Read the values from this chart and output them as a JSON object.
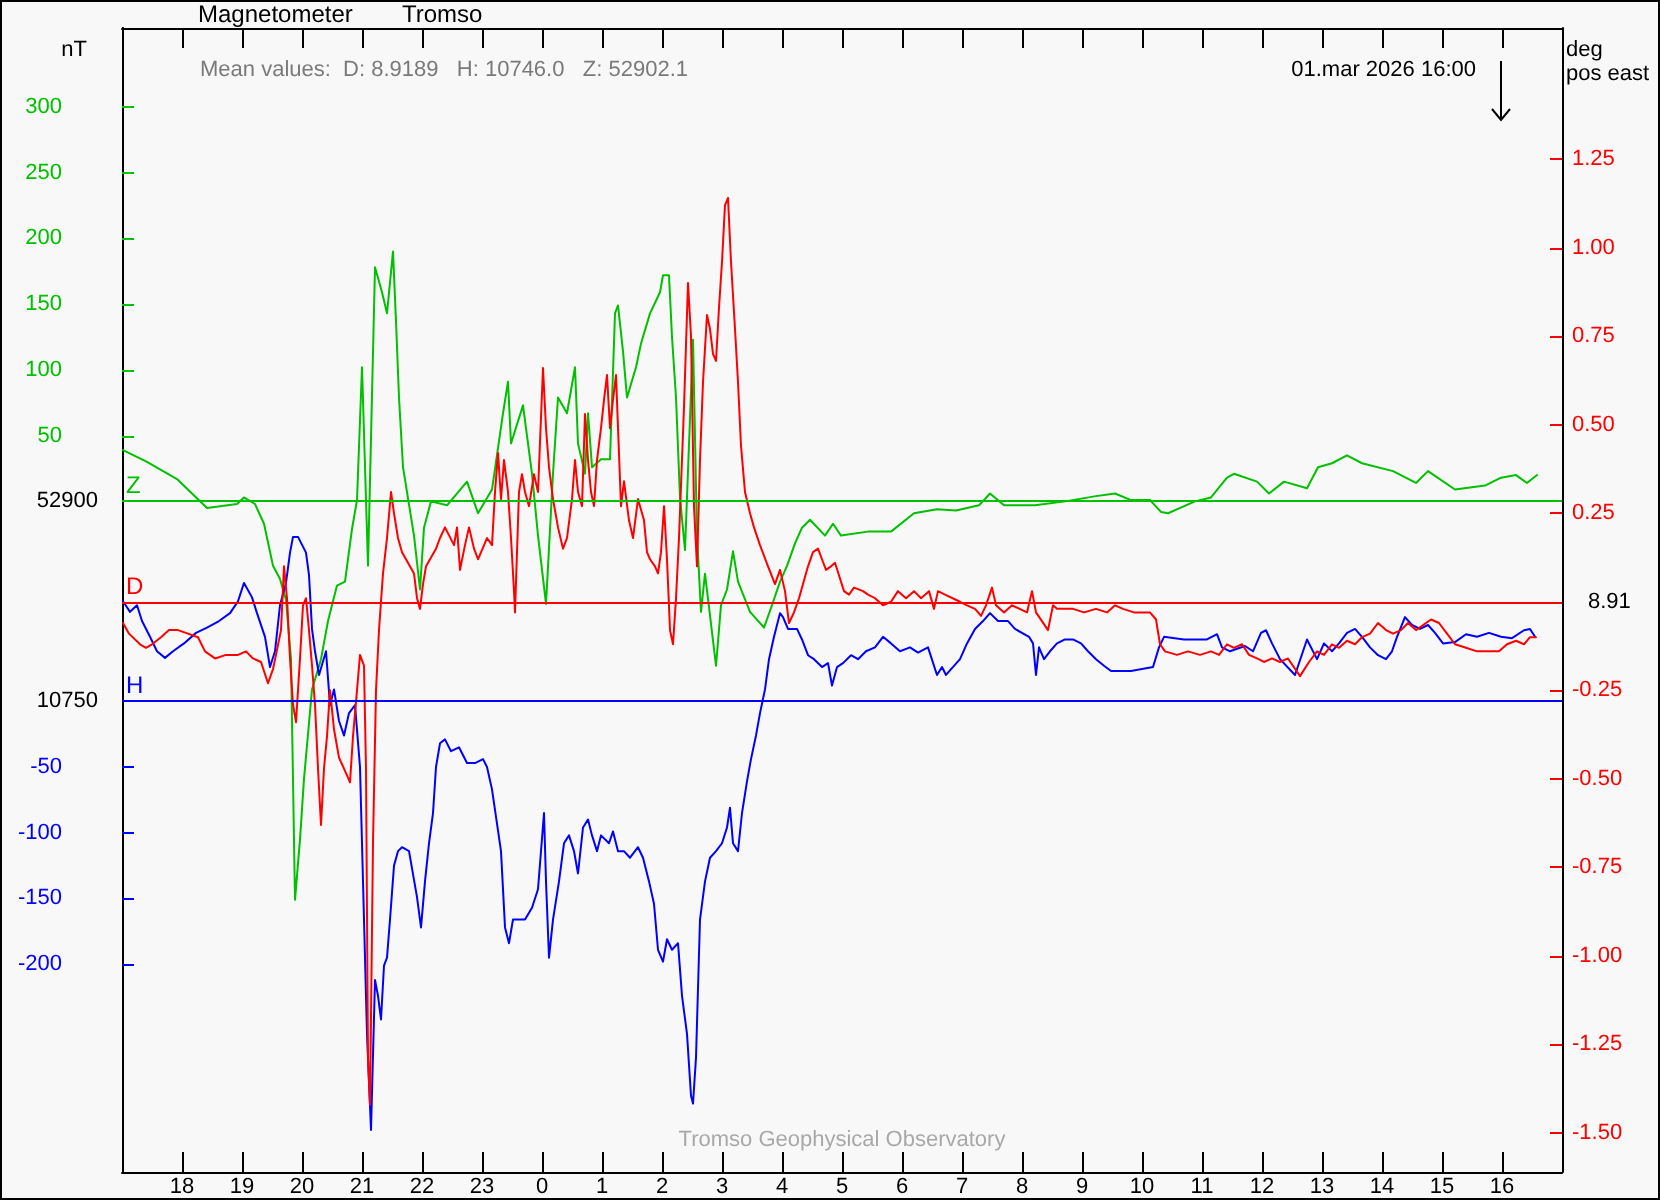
{
  "chart_data": {
    "type": "line",
    "title": "Magnetometer",
    "subtitle": "Tromso",
    "ylabel": "nT",
    "y3label": "deg\npos east",
    "annotations": [
      "Mean values:  D: 8.9189   H: 10746.0   Z: 52902.1",
      "01.mar 2026 16:00",
      "Tromso Geophysical Observatory",
      "52900",
      "8.91",
      "10750"
    ],
    "xlim": [
      "2026-02-28T17:00",
      "2026-03-01T17:00"
    ],
    "xticks": [
      {
        "value": "2026-02-28T18:00",
        "label": "18"
      },
      {
        "value": "2026-02-28T19:00",
        "label": "19"
      },
      {
        "value": "2026-02-28T20:00",
        "label": "20"
      },
      {
        "value": "2026-02-28T21:00",
        "label": "21"
      },
      {
        "value": "2026-02-28T22:00",
        "label": "22"
      },
      {
        "value": "2026-02-28T23:00",
        "label": "23"
      },
      {
        "value": "2026-03-01T00:00",
        "label": "0"
      },
      {
        "value": "2026-03-01T01:00",
        "label": "1"
      },
      {
        "value": "2026-03-01T02:00",
        "label": "2"
      },
      {
        "value": "2026-03-01T03:00",
        "label": "3"
      },
      {
        "value": "2026-03-01T04:00",
        "label": "4"
      },
      {
        "value": "2026-03-01T05:00",
        "label": "5"
      },
      {
        "value": "2026-03-01T06:00",
        "label": "6"
      },
      {
        "value": "2026-03-01T07:00",
        "label": "7"
      },
      {
        "value": "2026-03-01T08:00",
        "label": "8"
      },
      {
        "value": "2026-03-01T09:00",
        "label": "9"
      },
      {
        "value": "2026-03-01T10:00",
        "label": "10"
      },
      {
        "value": "2026-03-01T11:00",
        "label": "11"
      },
      {
        "value": "2026-03-01T12:00",
        "label": "12"
      },
      {
        "value": "2026-03-01T13:00",
        "label": "13"
      },
      {
        "value": "2026-03-01T14:00",
        "label": "14"
      },
      {
        "value": "2026-03-01T15:00",
        "label": "15"
      },
      {
        "value": "2026-03-01T16:00",
        "label": "16"
      }
    ],
    "ylim": [
      -510,
      360
    ],
    "yticks": [
      50,
      100,
      150,
      200,
      250,
      300
    ],
    "y2lim": [
      -358,
      512
    ],
    "y2ticks": [
      -50,
      -100,
      -150,
      -200
    ],
    "y3lim": [
      -1.61,
      1.62
    ],
    "y3ticks": [
      1.25,
      {
        "value": 1,
        "label": "1.00"
      },
      0.75,
      {
        "value": 0.5,
        "label": "0.50"
      },
      0.25,
      -0.25,
      {
        "value": -0.5,
        "label": "-0.50"
      },
      -0.75,
      {
        "value": -1,
        "label": "-1.00"
      },
      -1.25,
      {
        "value": -1.5,
        "label": "-1.50"
      }
    ],
    "ref_lines": [
      {
        "axis": "y",
        "value": 0,
        "label": "Z",
        "color": "#00c000"
      },
      {
        "axis": "y3",
        "value": 0,
        "label": "D",
        "color": "#ff0000"
      },
      {
        "axis": "y2",
        "value": 0,
        "label": "H",
        "color": "#0000ff"
      }
    ],
    "series": [
      {
        "color": "#00c000",
        "x": [
          "2026-02-28T17:01",
          "2026-02-28T17:25",
          "2026-02-28T17:55",
          "2026-02-28T18:25",
          "2026-02-28T18:55",
          "2026-02-28T19:02",
          "2026-02-28T19:13",
          "2026-02-28T19:22",
          "2026-02-28T19:31",
          "2026-02-28T19:38",
          "2026-02-28T19:44",
          "2026-02-28T19:49",
          "2026-02-28T19:53",
          "2026-02-28T19:58",
          "2026-02-28T20:02",
          "2026-02-28T20:10",
          "2026-02-28T20:19",
          "2026-02-28T20:26",
          "2026-02-28T20:35",
          "2026-02-28T20:43",
          "2026-02-28T20:50",
          "2026-02-28T20:55",
          "2026-02-28T21:00",
          "2026-02-28T21:06",
          "2026-02-28T21:13",
          "2026-02-28T21:20",
          "2026-02-28T21:25",
          "2026-02-28T21:31",
          "2026-02-28T21:34",
          "2026-02-28T21:37",
          "2026-02-28T21:41",
          "2026-02-28T21:52",
          "2026-02-28T21:58",
          "2026-02-28T22:02",
          "2026-02-28T22:09",
          "2026-02-28T22:25",
          "2026-02-28T22:45",
          "2026-02-28T22:56",
          "2026-02-28T23:10",
          "2026-02-28T23:21",
          "2026-02-28T23:26",
          "2026-02-28T23:29",
          "2026-02-28T23:41",
          "2026-02-28T23:50",
          "2026-02-28T23:56",
          "2026-03-01T00:04",
          "2026-03-01T00:11",
          "2026-03-01T00:16",
          "2026-03-01T00:25",
          "2026-03-01T00:33",
          "2026-03-01T00:36",
          "2026-03-01T00:43",
          "2026-03-01T00:46",
          "2026-03-01T00:50",
          "2026-03-01T00:59",
          "2026-03-01T01:08",
          "2026-03-01T01:13",
          "2026-03-01T01:16",
          "2026-03-01T01:21",
          "2026-03-01T01:25",
          "2026-03-01T01:34",
          "2026-03-01T01:39",
          "2026-03-01T01:48",
          "2026-03-01T01:58",
          "2026-03-01T02:01",
          "2026-03-01T02:07",
          "2026-03-01T02:10",
          "2026-03-01T02:14",
          "2026-03-01T02:18",
          "2026-03-01T02:23",
          "2026-03-01T02:31",
          "2026-03-01T02:35",
          "2026-03-01T02:39",
          "2026-03-01T02:43",
          "2026-03-01T02:54",
          "2026-03-01T02:59",
          "2026-03-01T03:05",
          "2026-03-01T03:11",
          "2026-03-01T03:16",
          "2026-03-01T03:28",
          "2026-03-01T03:42",
          "2026-03-01T03:50",
          "2026-03-01T03:58",
          "2026-03-01T04:05",
          "2026-03-01T04:13",
          "2026-03-01T04:20",
          "2026-03-01T04:28",
          "2026-03-01T04:43",
          "2026-03-01T04:51",
          "2026-03-01T04:59",
          "2026-03-01T05:26",
          "2026-03-01T05:49",
          "2026-03-01T06:12",
          "2026-03-01T06:35",
          "2026-03-01T06:54",
          "2026-03-01T07:17",
          "2026-03-01T07:28",
          "2026-03-01T07:42",
          "2026-03-01T08:13",
          "2026-03-01T08:43",
          "2026-03-01T09:14",
          "2026-03-01T09:33",
          "2026-03-01T09:49",
          "2026-03-01T10:08",
          "2026-03-01T10:19",
          "2026-03-01T10:26",
          "2026-03-01T10:53",
          "2026-03-01T11:09",
          "2026-03-01T11:25",
          "2026-03-01T11:32",
          "2026-03-01T11:55",
          "2026-03-01T12:07",
          "2026-03-01T12:22",
          "2026-03-01T12:45",
          "2026-03-01T12:56",
          "2026-03-01T13:10",
          "2026-03-01T13:25",
          "2026-03-01T13:40",
          "2026-03-01T14:11",
          "2026-03-01T14:34",
          "2026-03-01T14:46",
          "2026-03-01T15:13",
          "2026-03-01T15:43",
          "2026-03-01T15:59",
          "2026-03-01T16:14",
          "2026-03-01T16:25",
          "2026-03-01T16:35"
        ],
        "values": [
          39,
          30,
          17,
          -5,
          -2,
          3,
          -2,
          -17,
          -49,
          -59,
          -75,
          -120,
          -303,
          -257,
          -211,
          -143,
          -120,
          -91,
          -64,
          -61,
          -21,
          1,
          102,
          -49,
          178,
          159,
          143,
          190,
          137,
          79,
          26,
          -26,
          -67,
          -20,
          0,
          -3,
          15,
          -9,
          9,
          67,
          91,
          44,
          73,
          21,
          -26,
          -78,
          21,
          79,
          67,
          102,
          44,
          21,
          67,
          26,
          32,
          32,
          143,
          149,
          114,
          79,
          102,
          120,
          143,
          159,
          172,
          172,
          125,
          79,
          3,
          -37,
          123,
          -26,
          -84,
          -55,
          -125,
          -79,
          -67,
          -38,
          -61,
          -84,
          -96,
          -79,
          -61,
          -49,
          -32,
          -20,
          -14,
          -26,
          -17,
          -26,
          -23,
          -23,
          -9,
          -6,
          -7,
          -3,
          6,
          -3,
          -3,
          0,
          4,
          6,
          1,
          1,
          -8,
          -9,
          0,
          3,
          18,
          21,
          15,
          6,
          15,
          10,
          26,
          29,
          35,
          29,
          23,
          14,
          23,
          9,
          12,
          18,
          20,
          14,
          20
        ]
      },
      {
        "color": "#0000ff",
        "axis": "y2",
        "x": [
          "2026-02-28T17:01",
          "2026-02-28T17:08",
          "2026-02-28T17:15",
          "2026-02-28T17:20",
          "2026-02-28T17:28",
          "2026-02-28T17:35",
          "2026-02-28T17:43",
          "2026-02-28T17:51",
          "2026-02-28T18:02",
          "2026-02-28T18:14",
          "2026-02-28T18:25",
          "2026-02-28T18:37",
          "2026-02-28T18:48",
          "2026-02-28T18:56",
          "2026-02-28T19:02",
          "2026-02-28T19:10",
          "2026-02-28T19:15",
          "2026-02-28T19:23",
          "2026-02-28T19:28",
          "2026-02-28T19:33",
          "2026-02-28T19:38",
          "2026-02-28T19:44",
          "2026-02-28T19:48",
          "2026-02-28T19:51",
          "2026-02-28T19:56",
          "2026-02-28T20:04",
          "2026-02-28T20:07",
          "2026-02-28T20:10",
          "2026-02-28T20:13",
          "2026-02-28T20:17",
          "2026-02-28T20:24",
          "2026-02-28T20:28",
          "2026-02-28T20:32",
          "2026-02-28T20:37",
          "2026-02-28T20:42",
          "2026-02-28T20:47",
          "2026-02-28T20:53",
          "2026-02-28T20:58",
          "2026-02-28T21:02",
          "2026-02-28T21:05",
          "2026-02-28T21:09",
          "2026-02-28T21:13",
          "2026-02-28T21:16",
          "2026-02-28T21:19",
          "2026-02-28T21:22",
          "2026-02-28T21:25",
          "2026-02-28T21:28",
          "2026-02-28T21:32",
          "2026-02-28T21:36",
          "2026-02-28T21:40",
          "2026-02-28T21:47",
          "2026-02-28T21:55",
          "2026-02-28T21:59",
          "2026-02-28T22:03",
          "2026-02-28T22:07",
          "2026-02-28T22:11",
          "2026-02-28T22:14",
          "2026-02-28T22:18",
          "2026-02-28T22:23",
          "2026-02-28T22:29",
          "2026-02-28T22:37",
          "2026-02-28T22:45",
          "2026-02-28T22:53",
          "2026-02-28T23:01",
          "2026-02-28T23:05",
          "2026-02-28T23:10",
          "2026-02-28T23:19",
          "2026-02-28T23:23",
          "2026-02-28T23:27",
          "2026-02-28T23:31",
          "2026-02-28T23:43",
          "2026-02-28T23:50",
          "2026-02-28T23:56",
          "2026-03-01T00:02",
          "2026-03-01T00:04",
          "2026-03-01T00:07",
          "2026-03-01T00:11",
          "2026-03-01T00:17",
          "2026-03-01T00:22",
          "2026-03-01T00:27",
          "2026-03-01T00:32",
          "2026-03-01T00:36",
          "2026-03-01T00:41",
          "2026-03-01T00:46",
          "2026-03-01T00:50",
          "2026-03-01T00:55",
          "2026-03-01T00:59",
          "2026-03-01T01:07",
          "2026-03-01T01:11",
          "2026-03-01T01:16",
          "2026-03-01T01:22",
          "2026-03-01T01:28",
          "2026-03-01T01:36",
          "2026-03-01T01:41",
          "2026-03-01T01:47",
          "2026-03-01T01:52",
          "2026-03-01T01:56",
          "2026-03-01T02:01",
          "2026-03-01T02:05",
          "2026-03-01T02:10",
          "2026-03-01T02:16",
          "2026-03-01T02:20",
          "2026-03-01T02:25",
          "2026-03-01T02:29",
          "2026-03-01T02:31",
          "2026-03-01T02:34",
          "2026-03-01T02:38",
          "2026-03-01T02:43",
          "2026-03-01T02:48",
          "2026-03-01T02:54",
          "2026-03-01T03:00",
          "2026-03-01T03:05",
          "2026-03-01T03:08",
          "2026-03-01T03:11",
          "2026-03-01T03:16",
          "2026-03-01T03:20",
          "2026-03-01T03:25",
          "2026-03-01T03:29",
          "2026-03-01T03:34",
          "2026-03-01T03:38",
          "2026-03-01T03:43",
          "2026-03-01T03:47",
          "2026-03-01T03:52",
          "2026-03-01T03:58",
          "2026-03-01T04:01",
          "2026-03-01T04:06",
          "2026-03-01T04:15",
          "2026-03-01T04:20",
          "2026-03-01T04:26",
          "2026-03-01T04:32",
          "2026-03-01T04:40",
          "2026-03-01T04:46",
          "2026-03-01T04:50",
          "2026-03-01T04:55",
          "2026-03-01T05:01",
          "2026-03-01T05:09",
          "2026-03-01T05:16",
          "2026-03-01T05:24",
          "2026-03-01T05:33",
          "2026-03-01T05:41",
          "2026-03-01T05:49",
          "2026-03-01T05:58",
          "2026-03-01T06:08",
          "2026-03-01T06:16",
          "2026-03-01T06:26",
          "2026-03-01T06:35",
          "2026-03-01T06:40",
          "2026-03-01T06:44",
          "2026-03-01T06:58",
          "2026-03-01T07:05",
          "2026-03-01T07:13",
          "2026-03-01T07:21",
          "2026-03-01T07:28",
          "2026-03-01T07:36",
          "2026-03-01T07:46",
          "2026-03-01T07:53",
          "2026-03-01T08:07",
          "2026-03-01T08:11",
          "2026-03-01T08:14",
          "2026-03-01T08:17",
          "2026-03-01T08:22",
          "2026-03-01T08:28",
          "2026-03-01T08:35",
          "2026-03-01T08:43",
          "2026-03-01T08:51",
          "2026-03-01T08:59",
          "2026-03-01T09:06",
          "2026-03-01T09:14",
          "2026-03-01T09:22",
          "2026-03-01T09:29",
          "2026-03-01T09:49",
          "2026-03-01T10:11",
          "2026-03-01T10:17",
          "2026-03-01T10:22",
          "2026-03-01T10:42",
          "2026-03-01T11:05",
          "2026-03-01T11:15",
          "2026-03-01T11:20",
          "2026-03-01T11:28",
          "2026-03-01T11:43",
          "2026-03-01T11:51",
          "2026-03-01T11:59",
          "2026-03-01T12:04",
          "2026-03-01T12:10",
          "2026-03-01T12:18",
          "2026-03-01T12:33",
          "2026-03-01T12:45",
          "2026-03-01T12:55",
          "2026-03-01T13:02",
          "2026-03-01T13:10",
          "2026-03-01T13:17",
          "2026-03-01T13:25",
          "2026-03-01T13:33",
          "2026-03-01T13:40",
          "2026-03-01T13:48",
          "2026-03-01T13:56",
          "2026-03-01T14:04",
          "2026-03-01T14:10",
          "2026-03-01T14:15",
          "2026-03-01T14:23",
          "2026-03-01T14:30",
          "2026-03-01T14:38",
          "2026-03-01T14:46",
          "2026-03-01T14:53",
          "2026-03-01T15:01",
          "2026-03-01T15:13",
          "2026-03-01T15:24",
          "2026-03-01T15:35",
          "2026-03-01T15:47",
          "2026-03-01T15:59",
          "2026-03-01T16:10",
          "2026-03-01T16:22",
          "2026-03-01T16:28",
          "2026-03-01T16:33"
        ],
        "values": [
          76,
          68,
          73,
          61,
          49,
          38,
          33,
          38,
          44,
          52,
          56,
          61,
          67,
          76,
          90,
          79,
          67,
          49,
          26,
          38,
          73,
          90,
          113,
          125,
          125,
          113,
          96,
          55,
          38,
          20,
          38,
          -3,
          9,
          -15,
          -26,
          -9,
          -3,
          -50,
          -166,
          -253,
          -326,
          -212,
          -224,
          -242,
          -201,
          -195,
          -166,
          -125,
          -114,
          -111,
          -114,
          -149,
          -172,
          -137,
          -108,
          -85,
          -50,
          -32,
          -29,
          -38,
          -35,
          -47,
          -47,
          -44,
          -50,
          -67,
          -114,
          -172,
          -184,
          -166,
          -166,
          -157,
          -143,
          -85,
          -137,
          -195,
          -166,
          -137,
          -108,
          -102,
          -114,
          -131,
          -96,
          -90,
          -102,
          -114,
          -102,
          -108,
          -99,
          -114,
          -114,
          -119,
          -111,
          -119,
          -137,
          -154,
          -189,
          -198,
          -181,
          -189,
          -184,
          -224,
          -253,
          -300,
          -306,
          -271,
          -166,
          -137,
          -119,
          -114,
          -108,
          -96,
          -81,
          -108,
          -114,
          -85,
          -61,
          -44,
          -26,
          -9,
          9,
          32,
          49,
          67,
          64,
          55,
          55,
          47,
          35,
          32,
          26,
          29,
          12,
          26,
          29,
          35,
          32,
          38,
          41,
          49,
          44,
          38,
          41,
          37,
          41,
          20,
          26,
          20,
          32,
          44,
          55,
          61,
          67,
          61,
          61,
          55,
          49,
          44,
          20,
          41,
          32,
          38,
          44,
          47,
          47,
          44,
          38,
          32,
          27,
          23,
          23,
          26,
          41,
          49,
          47,
          47,
          51,
          41,
          38,
          42,
          38,
          52,
          54,
          44,
          32,
          20,
          47,
          32,
          44,
          38,
          44,
          52,
          55,
          49,
          41,
          35,
          32,
          38,
          49,
          64,
          58,
          55,
          58,
          52,
          44,
          45,
          51,
          49,
          52,
          49,
          48,
          54,
          55,
          49
        ]
      },
      {
        "color": "#ff0000",
        "axis": "y3",
        "x": [
          "2026-02-28T17:01",
          "2026-02-28T17:07",
          "2026-02-28T17:18",
          "2026-02-28T17:24",
          "2026-02-28T17:30",
          "2026-02-28T17:39",
          "2026-02-28T17:47",
          "2026-02-28T17:56",
          "2026-02-28T18:06",
          "2026-02-28T18:16",
          "2026-02-28T18:23",
          "2026-02-28T18:33",
          "2026-02-28T18:44",
          "2026-02-28T18:56",
          "2026-02-28T19:04",
          "2026-02-28T19:11",
          "2026-02-28T19:19",
          "2026-02-28T19:26",
          "2026-02-28T19:31",
          "2026-02-28T19:34",
          "2026-02-28T19:39",
          "2026-02-28T19:42",
          "2026-02-28T19:45",
          "2026-02-28T19:48",
          "2026-02-28T19:51",
          "2026-02-28T19:54",
          "2026-02-28T19:58",
          "2026-02-28T20:01",
          "2026-02-28T20:04",
          "2026-02-28T20:07",
          "2026-02-28T20:10",
          "2026-02-28T20:13",
          "2026-02-28T20:16",
          "2026-02-28T20:19",
          "2026-02-28T20:22",
          "2026-02-28T20:25",
          "2026-02-28T20:28",
          "2026-02-28T20:32",
          "2026-02-28T20:37",
          "2026-02-28T20:45",
          "2026-02-28T20:48",
          "2026-02-28T20:51",
          "2026-02-28T20:55",
          "2026-02-28T20:58",
          "2026-02-28T21:02",
          "2026-02-28T21:04",
          "2026-02-28T21:06",
          "2026-02-28T21:08",
          "2026-02-28T21:11",
          "2026-02-28T21:14",
          "2026-02-28T21:17",
          "2026-02-28T21:21",
          "2026-02-28T21:25",
          "2026-02-28T21:29",
          "2026-02-28T21:32",
          "2026-02-28T21:36",
          "2026-02-28T21:40",
          "2026-02-28T21:52",
          "2026-02-28T21:55",
          "2026-02-28T21:58",
          "2026-02-28T22:01",
          "2026-02-28T22:04",
          "2026-02-28T22:14",
          "2026-02-28T22:18",
          "2026-02-28T22:23",
          "2026-02-28T22:32",
          "2026-02-28T22:35",
          "2026-02-28T22:38",
          "2026-02-28T22:43",
          "2026-02-28T22:47",
          "2026-02-28T22:52",
          "2026-02-28T22:56",
          "2026-02-28T23:05",
          "2026-02-28T23:10",
          "2026-02-28T23:13",
          "2026-02-28T23:16",
          "2026-02-28T23:19",
          "2026-02-28T23:22",
          "2026-02-28T23:26",
          "2026-02-28T23:29",
          "2026-02-28T23:32",
          "2026-02-28T23:33",
          "2026-02-28T23:37",
          "2026-02-28T23:40",
          "2026-02-28T23:43",
          "2026-02-28T23:47",
          "2026-02-28T23:52",
          "2026-02-28T23:56",
          "2026-03-01T00:01",
          "2026-03-01T00:04",
          "2026-03-01T00:07",
          "2026-03-01T00:11",
          "2026-03-01T00:16",
          "2026-03-01T00:21",
          "2026-03-01T00:25",
          "2026-03-01T00:30",
          "2026-03-01T00:33",
          "2026-03-01T00:36",
          "2026-03-01T00:40",
          "2026-03-01T00:43",
          "2026-03-01T00:46",
          "2026-03-01T00:49",
          "2026-03-01T00:52",
          "2026-03-01T00:55",
          "2026-03-01T00:59",
          "2026-03-01T01:02",
          "2026-03-01T01:05",
          "2026-03-01T01:08",
          "2026-03-01T01:11",
          "2026-03-01T01:14",
          "2026-03-01T01:19",
          "2026-03-01T01:22",
          "2026-03-01T01:27",
          "2026-03-01T01:31",
          "2026-03-01T01:36",
          "2026-03-01T01:42",
          "2026-03-01T01:45",
          "2026-03-01T01:48",
          "2026-03-01T01:53",
          "2026-03-01T01:56",
          "2026-03-01T01:59",
          "2026-03-01T02:02",
          "2026-03-01T02:05",
          "2026-03-01T02:08",
          "2026-03-01T02:11",
          "2026-03-01T02:14",
          "2026-03-01T02:17",
          "2026-03-01T02:22",
          "2026-03-01T02:26",
          "2026-03-01T02:29",
          "2026-03-01T02:32",
          "2026-03-01T02:35",
          "2026-03-01T02:38",
          "2026-03-01T02:41",
          "2026-03-01T02:45",
          "2026-03-01T02:48",
          "2026-03-01T02:51",
          "2026-03-01T02:54",
          "2026-03-01T02:57",
          "2026-03-01T03:00",
          "2026-03-01T03:03",
          "2026-03-01T03:06",
          "2026-03-01T03:09",
          "2026-03-01T03:13",
          "2026-03-01T03:16",
          "2026-03-01T03:19",
          "2026-03-01T03:23",
          "2026-03-01T03:28",
          "2026-03-01T03:32",
          "2026-03-01T03:38",
          "2026-03-01T03:46",
          "2026-03-01T03:53",
          "2026-03-01T03:58",
          "2026-03-01T04:03",
          "2026-03-01T04:07",
          "2026-03-01T04:12",
          "2026-03-01T04:17",
          "2026-03-01T04:21",
          "2026-03-01T04:26",
          "2026-03-01T04:31",
          "2026-03-01T04:36",
          "2026-03-01T04:40",
          "2026-03-01T04:44",
          "2026-03-01T04:49",
          "2026-03-01T04:53",
          "2026-03-01T05:02",
          "2026-03-01T05:07",
          "2026-03-01T05:12",
          "2026-03-01T05:21",
          "2026-03-01T05:26",
          "2026-03-01T05:33",
          "2026-03-01T05:41",
          "2026-03-01T05:49",
          "2026-03-01T05:56",
          "2026-03-01T06:04",
          "2026-03-01T06:12",
          "2026-03-01T06:19",
          "2026-03-01T06:27",
          "2026-03-01T06:32",
          "2026-03-01T06:36",
          "2026-03-01T06:43",
          "2026-03-01T06:58",
          "2026-03-01T07:05",
          "2026-03-01T07:13",
          "2026-03-01T07:19",
          "2026-03-01T07:24",
          "2026-03-01T07:30",
          "2026-03-01T07:34",
          "2026-03-01T07:42",
          "2026-03-01T07:50",
          "2026-03-01T08:05",
          "2026-03-01T08:10",
          "2026-03-01T08:14",
          "2026-03-01T08:26",
          "2026-03-01T08:31",
          "2026-03-01T08:35",
          "2026-03-01T08:51",
          "2026-03-01T09:02",
          "2026-03-01T09:14",
          "2026-03-01T09:25",
          "2026-03-01T09:33",
          "2026-03-01T09:41",
          "2026-03-01T09:52",
          "2026-03-01T10:08",
          "2026-03-01T10:14",
          "2026-03-01T10:18",
          "2026-03-01T10:23",
          "2026-03-01T10:35",
          "2026-03-01T10:46",
          "2026-03-01T10:58",
          "2026-03-01T11:09",
          "2026-03-01T11:17",
          "2026-03-01T11:25",
          "2026-03-01T11:32",
          "2026-03-01T11:40",
          "2026-03-01T11:47",
          "2026-03-01T11:55",
          "2026-03-01T12:02",
          "2026-03-01T12:10",
          "2026-03-01T12:18",
          "2026-03-01T12:26",
          "2026-03-01T12:38",
          "2026-03-01T12:47",
          "2026-03-01T12:55",
          "2026-03-01T13:02",
          "2026-03-01T13:10",
          "2026-03-01T13:17",
          "2026-03-01T13:25",
          "2026-03-01T13:33",
          "2026-03-01T13:40",
          "2026-03-01T13:48",
          "2026-03-01T13:56",
          "2026-03-01T14:04",
          "2026-03-01T14:11",
          "2026-03-01T14:19",
          "2026-03-01T14:26",
          "2026-03-01T14:34",
          "2026-03-01T14:49",
          "2026-03-01T14:57",
          "2026-03-01T15:05",
          "2026-03-01T15:13",
          "2026-03-01T15:24",
          "2026-03-01T15:35",
          "2026-03-01T15:47",
          "2026-03-01T15:57",
          "2026-03-01T16:05",
          "2026-03-01T16:14",
          "2026-03-01T16:22",
          "2026-03-01T16:28",
          "2026-03-01T16:34"
        ],
        "values": [
          -0.06,
          -0.09,
          -0.12,
          -0.13,
          -0.12,
          -0.1,
          -0.08,
          -0.08,
          -0.09,
          -0.1,
          -0.14,
          -0.16,
          -0.15,
          -0.15,
          -0.14,
          -0.16,
          -0.17,
          -0.23,
          -0.19,
          -0.15,
          -0.08,
          0.1,
          0.01,
          -0.16,
          -0.29,
          -0.34,
          -0.16,
          -0.01,
          0.01,
          -0.08,
          -0.18,
          -0.29,
          -0.47,
          -0.63,
          -0.47,
          -0.38,
          -0.25,
          -0.36,
          -0.44,
          -0.49,
          -0.51,
          -0.38,
          -0.25,
          -0.15,
          -0.18,
          -0.47,
          -1.29,
          -1.42,
          -0.68,
          -0.25,
          -0.08,
          0.08,
          0.18,
          0.31,
          0.25,
          0.18,
          0.14,
          0.08,
          0.01,
          -0.02,
          0.05,
          0.1,
          0.15,
          0.18,
          0.21,
          0.16,
          0.21,
          0.09,
          0.16,
          0.21,
          0.15,
          0.12,
          0.18,
          0.16,
          0.31,
          0.42,
          0.29,
          0.4,
          0.31,
          0.18,
          0.03,
          -0.03,
          0.31,
          0.36,
          0.31,
          0.27,
          0.36,
          0.31,
          0.66,
          0.49,
          0.38,
          0.29,
          0.21,
          0.15,
          0.18,
          0.29,
          0.4,
          0.31,
          0.27,
          0.53,
          0.4,
          0.31,
          0.27,
          0.4,
          0.49,
          0.57,
          0.64,
          0.49,
          0.57,
          0.64,
          0.27,
          0.34,
          0.23,
          0.18,
          0.29,
          0.23,
          0.14,
          0.12,
          0.1,
          0.08,
          0.14,
          0.27,
          0.12,
          -0.08,
          -0.12,
          0.01,
          0.18,
          0.55,
          0.9,
          0.75,
          0.27,
          0.1,
          0.4,
          0.62,
          0.81,
          0.77,
          0.7,
          0.68,
          0.83,
          0.96,
          1.12,
          1.14,
          0.96,
          0.77,
          0.62,
          0.44,
          0.31,
          0.25,
          0.21,
          0.16,
          0.1,
          0.05,
          0.09,
          0.03,
          -0.06,
          -0.03,
          0.01,
          0.05,
          0.1,
          0.14,
          0.15,
          0.12,
          0.09,
          0.1,
          0.11,
          0.03,
          0.02,
          0.04,
          0.03,
          0.02,
          0.01,
          -0.01,
          0,
          0.03,
          0.01,
          0.03,
          0.01,
          0.03,
          -0.02,
          0.03,
          0.02,
          0,
          -0.01,
          -0.02,
          -0.04,
          -0.01,
          0.04,
          -0.01,
          -0.03,
          -0.01,
          -0.03,
          0.03,
          -0.03,
          -0.08,
          -0.01,
          -0.02,
          -0.02,
          -0.03,
          -0.02,
          -0.03,
          -0.01,
          -0.02,
          -0.03,
          -0.03,
          -0.05,
          -0.12,
          -0.14,
          -0.15,
          -0.14,
          -0.15,
          -0.14,
          -0.15,
          -0.12,
          -0.13,
          -0.12,
          -0.15,
          -0.16,
          -0.17,
          -0.16,
          -0.17,
          -0.16,
          -0.21,
          -0.17,
          -0.14,
          -0.15,
          -0.12,
          -0.13,
          -0.11,
          -0.12,
          -0.1,
          -0.09,
          -0.06,
          -0.08,
          -0.09,
          -0.08,
          -0.06,
          -0.08,
          -0.05,
          -0.06,
          -0.09,
          -0.12,
          -0.13,
          -0.14,
          -0.14,
          -0.14,
          -0.12,
          -0.11,
          -0.12,
          -0.1,
          -0.1
        ]
      }
    ]
  }
}
